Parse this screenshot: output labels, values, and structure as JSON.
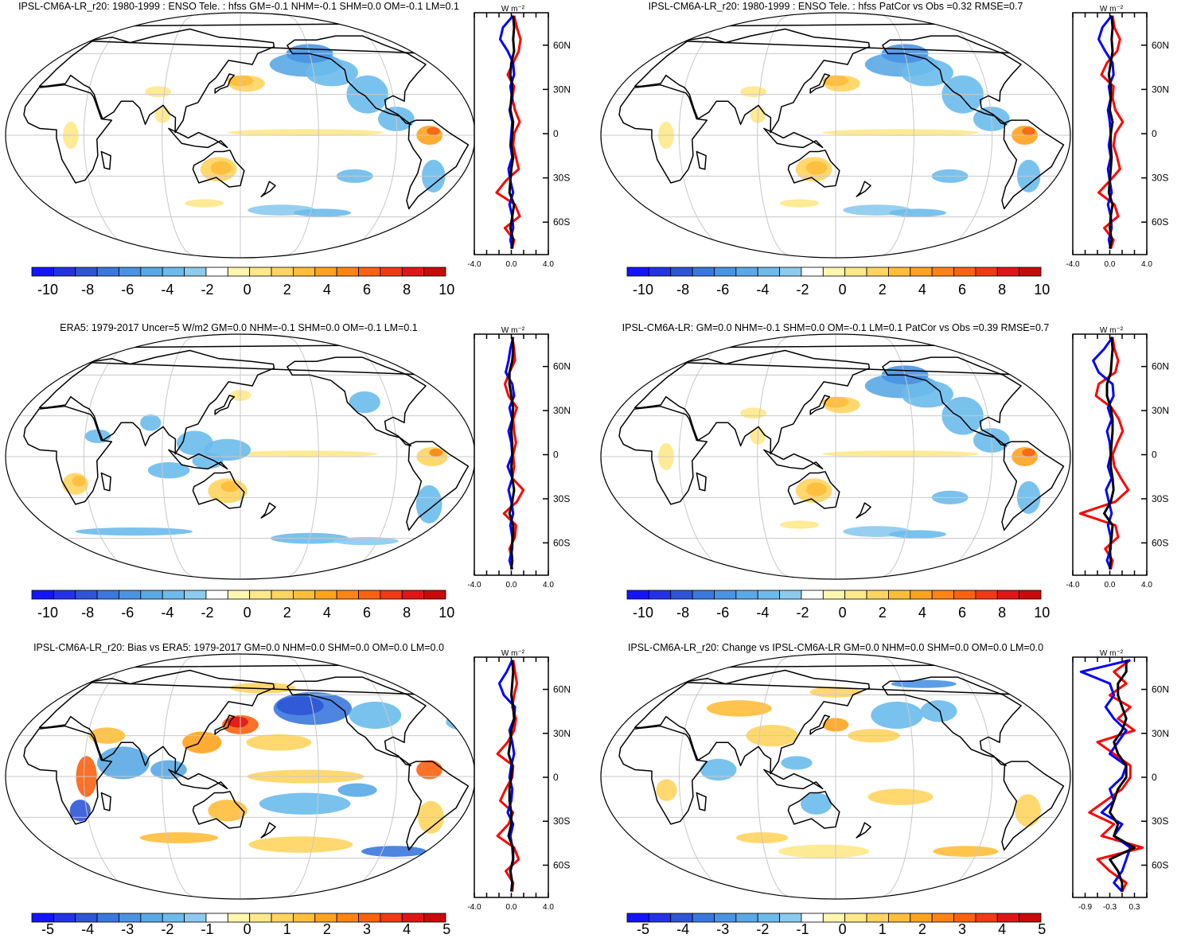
{
  "figure": {
    "panels": [
      {
        "title": "IPSL-CM6A-LR_r20: 1980-1999 : ENSO Tele. : hfss GM=-0.1 NHM=-0.1 SHM=0.0 OM=-0.1 LM=0.1",
        "map_type": "model",
        "colorbar_labels": [
          "-10",
          "-8",
          "-6",
          "-4",
          "-2",
          "0",
          "2",
          "4",
          "6",
          "8",
          "10"
        ],
        "zonal": {
          "unit": "W m-2",
          "lat_tick_labels": [
            "60N",
            "30N",
            "0",
            "30S",
            "60S"
          ],
          "x_tick_labels": [
            "-4.0",
            "0.0",
            "4.0"
          ],
          "xlim": [
            -4,
            4
          ]
        }
      },
      {
        "title": "IPSL-CM6A-LR_r20: 1980-1999 : ENSO Tele. : hfss PatCor vs Obs =0.32 RMSE=0.7",
        "map_type": "model",
        "colorbar_labels": [
          "-10",
          "-8",
          "-6",
          "-4",
          "-2",
          "0",
          "2",
          "4",
          "6",
          "8",
          "10"
        ],
        "zonal": {
          "unit": "W m-2",
          "lat_tick_labels": [
            "60N",
            "30N",
            "0",
            "30S",
            "60S"
          ],
          "x_tick_labels": [
            "-4.0",
            "0.0",
            "4.0"
          ],
          "xlim": [
            -4,
            4
          ]
        }
      },
      {
        "title": "ERA5: 1979-2017 Uncer=5 W/m2 GM=0.0 NHM=-0.1 SHM=0.0 OM=-0.1 LM=0.1",
        "map_type": "obs",
        "colorbar_labels": [
          "-10",
          "-8",
          "-6",
          "-4",
          "-2",
          "0",
          "2",
          "4",
          "6",
          "8",
          "10"
        ],
        "zonal": {
          "unit": "W m-2",
          "lat_tick_labels": [
            "60N",
            "30N",
            "0",
            "30S",
            "60S"
          ],
          "x_tick_labels": [
            "-4.0",
            "0.0",
            "4.0"
          ],
          "xlim": [
            -4,
            4
          ]
        }
      },
      {
        "title": "IPSL-CM6A-LR: GM=0.0 NHM=-0.1 SHM=0.0 OM=-0.1 LM=0.1 PatCor vs Obs =0.39 RMSE=0.7",
        "map_type": "model",
        "colorbar_labels": [
          "-10",
          "-8",
          "-6",
          "-4",
          "-2",
          "0",
          "2",
          "4",
          "6",
          "8",
          "10"
        ],
        "zonal": {
          "unit": "W m-2",
          "lat_tick_labels": [
            "60N",
            "30N",
            "0",
            "30S",
            "60S"
          ],
          "x_tick_labels": [
            "-4.0",
            "0.0",
            "4.0"
          ],
          "xlim": [
            -4,
            4
          ]
        }
      },
      {
        "title": "IPSL-CM6A-LR_r20: Bias vs ERA5: 1979-2017 GM=0.0 NHM=0.0 SHM=0.0 OM=0.0 LM=0.0",
        "map_type": "bias",
        "colorbar_labels": [
          "-5",
          "-4",
          "-3",
          "-2",
          "-1",
          "0",
          "1",
          "2",
          "3",
          "4",
          "5"
        ],
        "zonal": {
          "unit": "W m-2",
          "lat_tick_labels": [
            "60N",
            "30N",
            "0",
            "30S",
            "60S"
          ],
          "x_tick_labels": [
            "-4.0",
            "0.0",
            "4.0"
          ],
          "xlim": [
            -4,
            4
          ]
        }
      },
      {
        "title": "IPSL-CM6A-LR_r20: Change vs IPSL-CM6A-LR GM=0.0 NHM=0.0 SHM=0.0 OM=0.0 LM=0.0",
        "map_type": "change",
        "colorbar_labels": [
          "-5",
          "-4",
          "-3",
          "-2",
          "-1",
          "0",
          "1",
          "2",
          "3",
          "4",
          "5"
        ],
        "zonal": {
          "unit": "W m-2",
          "lat_tick_labels": [
            "60N",
            "30N",
            "0",
            "30S",
            "60S"
          ],
          "x_tick_labels": [
            "-0.9",
            "-0.3",
            "0.3"
          ],
          "xlim": [
            -1.2,
            0.6
          ]
        }
      }
    ]
  },
  "chart_data": {
    "type": "heatmap",
    "description_units": "W m-2",
    "colorbar": {
      "colors": [
        "#1414ff",
        "#2432e6",
        "#2f55d6",
        "#3a78dd",
        "#4a93e2",
        "#5aa9e6",
        "#6cbbec",
        "#8ccaee",
        "#ffffff",
        "#fff6b0",
        "#ffe88a",
        "#ffd461",
        "#ffbe3a",
        "#ffa31f",
        "#ff8413",
        "#fa6210",
        "#f03a14",
        "#e01616",
        "#c80a0a"
      ],
      "ticks_main": [
        -10,
        -8,
        -6,
        -4,
        -2,
        0,
        2,
        4,
        6,
        8,
        10
      ],
      "ticks_bias": [
        -5,
        -4,
        -3,
        -2,
        -1,
        0,
        1,
        2,
        3,
        4,
        5
      ]
    },
    "zonal_means": {
      "lats": [
        80,
        72,
        64,
        56,
        48,
        40,
        32,
        24,
        16,
        8,
        0,
        -8,
        -16,
        -24,
        -32,
        -40,
        -48,
        -56,
        -64,
        -72,
        -78
      ],
      "panels": [
        {
          "series": [
            {
              "color": "#ff0000",
              "values": [
                0.3,
                0.6,
                1.0,
                0.8,
                0.2,
                -0.4,
                0.3,
                0.1,
                0.4,
                0.9,
                0.3,
                0.2,
                0.5,
                0.8,
                -0.6,
                -1.6,
                0.4,
                0.9,
                -0.7,
                0.3,
                0.1
              ]
            },
            {
              "color": "#0000ff",
              "values": [
                0.2,
                -0.9,
                -1.2,
                -0.4,
                0.2,
                0.3,
                -0.1,
                0.1,
                -0.2,
                0.1,
                0.0,
                -0.1,
                0.1,
                -0.3,
                -0.1,
                0.2,
                -0.2,
                0.1,
                0.2,
                -0.1,
                0.1
              ]
            },
            {
              "color": "#000000",
              "values": [
                0.2,
                0.3,
                0.2,
                0.3,
                0.0,
                -0.1,
                0.1,
                0.0,
                -0.1,
                0.2,
                0.1,
                0.0,
                0.2,
                0.0,
                -0.1,
                -0.2,
                0.3,
                0.1,
                -0.1,
                0.2,
                0.0
              ]
            }
          ]
        },
        {
          "series": [
            {
              "color": "#ff0000",
              "values": [
                0.3,
                0.5,
                1.1,
                0.8,
                -0.3,
                -0.9,
                0.4,
                0.3,
                0.6,
                1.4,
                0.6,
                0.4,
                0.8,
                1.1,
                0.0,
                -1.2,
                0.5,
                0.9,
                -0.6,
                0.4,
                0.1
              ]
            },
            {
              "color": "#0000ff",
              "values": [
                0.2,
                -0.8,
                -1.2,
                -0.5,
                0.3,
                0.4,
                -0.1,
                0.1,
                -0.2,
                0.0,
                0.1,
                -0.1,
                0.1,
                -0.2,
                0.0,
                0.2,
                -0.2,
                0.1,
                0.2,
                -0.1,
                0.1
              ]
            },
            {
              "color": "#000000",
              "values": [
                0.2,
                0.3,
                0.2,
                0.3,
                0.1,
                -0.1,
                0.1,
                0.1,
                0.0,
                0.3,
                0.1,
                0.1,
                0.2,
                0.1,
                0.0,
                -0.1,
                0.3,
                0.1,
                0.0,
                0.2,
                0.0
              ]
            }
          ]
        },
        {
          "series": [
            {
              "color": "#ff0000",
              "values": [
                0.1,
                0.3,
                0.4,
                -0.2,
                -0.7,
                -0.3,
                0.6,
                0.2,
                0.3,
                0.5,
                0.2,
                0.3,
                0.1,
                1.3,
                0.6,
                -0.8,
                0.5,
                0.4,
                -0.2,
                0.1,
                0.0
              ]
            },
            {
              "color": "#0000ff",
              "values": [
                0.2,
                -0.1,
                -0.3,
                -0.6,
                0.1,
                0.3,
                -0.2,
                0.1,
                -0.3,
                0.0,
                0.1,
                -0.4,
                0.1,
                -0.3,
                0.0,
                0.2,
                -0.1,
                0.1,
                0.1,
                -0.2,
                0.1
              ]
            },
            {
              "color": "#000000",
              "values": [
                0.1,
                0.2,
                0.1,
                -0.2,
                -0.2,
                0.0,
                0.2,
                0.1,
                0.0,
                0.1,
                0.1,
                0.0,
                0.1,
                0.3,
                0.1,
                -0.2,
                0.2,
                0.2,
                0.0,
                0.1,
                0.0
              ]
            }
          ]
        },
        {
          "series": [
            {
              "color": "#ff0000",
              "values": [
                0.3,
                0.5,
                0.9,
                0.6,
                -1.2,
                -1.5,
                0.2,
                1.0,
                1.4,
                0.8,
                0.3,
                0.5,
                1.2,
                2.0,
                0.6,
                -3.2,
                0.6,
                0.9,
                -0.5,
                0.3,
                0.1
              ]
            },
            {
              "color": "#0000ff",
              "values": [
                0.3,
                -0.6,
                -1.8,
                -1.2,
                0.3,
                0.4,
                -0.2,
                0.2,
                -0.3,
                0.0,
                0.1,
                -0.2,
                0.2,
                -0.4,
                -0.1,
                0.2,
                -0.2,
                0.1,
                0.1,
                -0.3,
                0.1
              ]
            },
            {
              "color": "#000000",
              "values": [
                0.2,
                0.3,
                0.2,
                0.1,
                -0.3,
                -0.3,
                0.1,
                0.3,
                0.3,
                0.2,
                0.1,
                0.1,
                0.3,
                0.4,
                0.1,
                -0.6,
                0.3,
                0.2,
                0.0,
                0.1,
                0.0
              ]
            }
          ]
        },
        {
          "series": [
            {
              "color": "#ff0000",
              "values": [
                0.2,
                0.4,
                0.6,
                0.3,
                0.1,
                0.5,
                0.3,
                -0.4,
                -1.5,
                0.2,
                0.1,
                -0.6,
                -1.2,
                0.2,
                -0.3,
                -1.5,
                0.3,
                0.8,
                -0.6,
                0.2,
                0.1
              ]
            },
            {
              "color": "#0000ff",
              "values": [
                0.1,
                -0.5,
                -1.3,
                -0.8,
                0.4,
                0.3,
                -0.2,
                0.1,
                0.3,
                0.0,
                -0.2,
                0.1,
                0.0,
                -0.4,
                0.2,
                -0.1,
                0.1,
                0.2,
                -0.1,
                0.1,
                0.0
              ]
            },
            {
              "color": "#000000",
              "values": [
                0.1,
                0.2,
                0.1,
                0.0,
                0.2,
                0.3,
                0.0,
                -0.1,
                -0.3,
                0.1,
                0.0,
                -0.2,
                -0.2,
                0.0,
                0.0,
                -0.3,
                0.2,
                0.2,
                -0.1,
                0.1,
                0.0
              ]
            }
          ]
        },
        {
          "series": [
            {
              "color": "#ff0000",
              "values": [
                0.2,
                -0.2,
                0.1,
                -0.3,
                0.2,
                -0.1,
                0.3,
                -0.6,
                -0.2,
                0.2,
                0.2,
                0.0,
                -0.4,
                -0.8,
                -0.2,
                -0.5,
                0.5,
                -0.6,
                -0.3,
                0.1,
                0.0
              ]
            },
            {
              "color": "#0000ff",
              "values": [
                0.2,
                -1.0,
                -0.3,
                -0.2,
                -0.4,
                -0.2,
                0.1,
                -0.1,
                -0.3,
                0.1,
                0.0,
                -0.3,
                -0.2,
                -0.5,
                0.0,
                -0.2,
                0.2,
                0.1,
                0.0,
                -0.2,
                0.0
              ]
            },
            {
              "color": "#000000",
              "values": [
                0.1,
                0.1,
                -0.1,
                -0.1,
                0.0,
                0.1,
                0.0,
                -0.2,
                -0.1,
                0.1,
                0.1,
                -0.1,
                -0.2,
                -0.3,
                -0.1,
                -0.2,
                0.3,
                -0.3,
                -0.1,
                0.0,
                0.0
              ]
            }
          ]
        }
      ]
    }
  }
}
